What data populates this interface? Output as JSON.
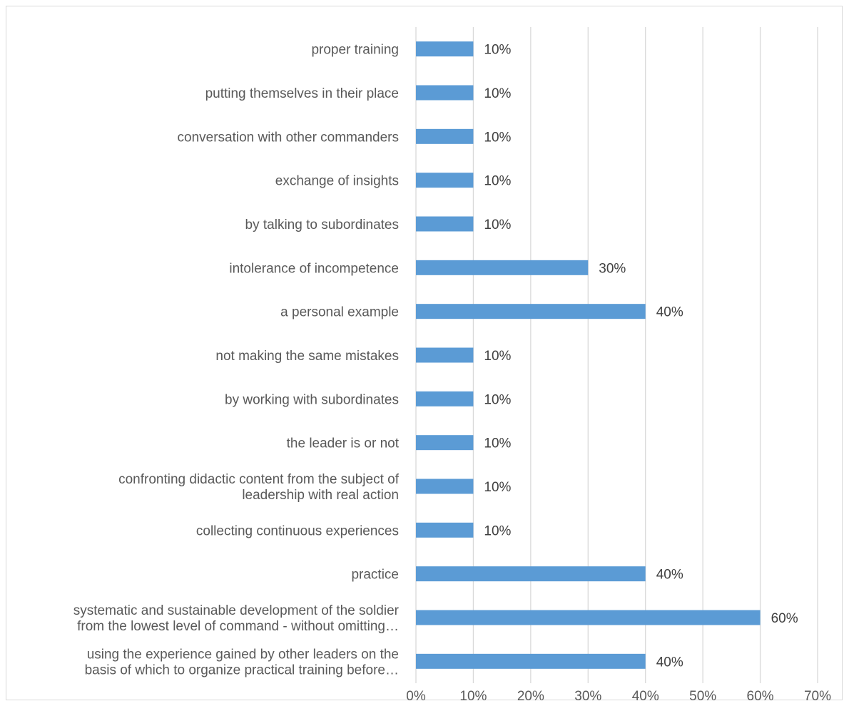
{
  "chart_data": {
    "type": "bar",
    "orientation": "horizontal",
    "categories": [
      [
        "proper training"
      ],
      [
        "putting themselves in their place"
      ],
      [
        "conversation with other commanders"
      ],
      [
        "exchange of insights"
      ],
      [
        "by talking to subordinates"
      ],
      [
        "intolerance of incompetence"
      ],
      [
        "a personal example"
      ],
      [
        "not making the same mistakes"
      ],
      [
        "by working with subordinates"
      ],
      [
        "the leader is or not"
      ],
      [
        "confronting didactic content from the subject of",
        "leadership with real action"
      ],
      [
        "collecting continuous experiences"
      ],
      [
        "practice"
      ],
      [
        "systematic and sustainable development of the soldier",
        "from the lowest level of command - without omitting…"
      ],
      [
        "using the experience gained by other leaders on the",
        "basis of which to organize practical training before…"
      ]
    ],
    "values": [
      0.1,
      0.1,
      0.1,
      0.1,
      0.1,
      0.3,
      0.4,
      0.1,
      0.1,
      0.1,
      0.1,
      0.1,
      0.4,
      0.6,
      0.4
    ],
    "data_labels": [
      "10%",
      "10%",
      "10%",
      "10%",
      "10%",
      "30%",
      "40%",
      "10%",
      "10%",
      "10%",
      "10%",
      "10%",
      "40%",
      "60%",
      "40%"
    ],
    "xlim": [
      0,
      0.7
    ],
    "xticks": [
      0,
      0.1,
      0.2,
      0.3,
      0.4,
      0.5,
      0.6,
      0.7
    ],
    "xtick_labels": [
      "0%",
      "10%",
      "20%",
      "30%",
      "40%",
      "50%",
      "60%",
      "70%"
    ],
    "grid": "vertical",
    "legend": "none",
    "bar_color": "#5b9bd5",
    "grid_color": "#d9d9d9"
  }
}
